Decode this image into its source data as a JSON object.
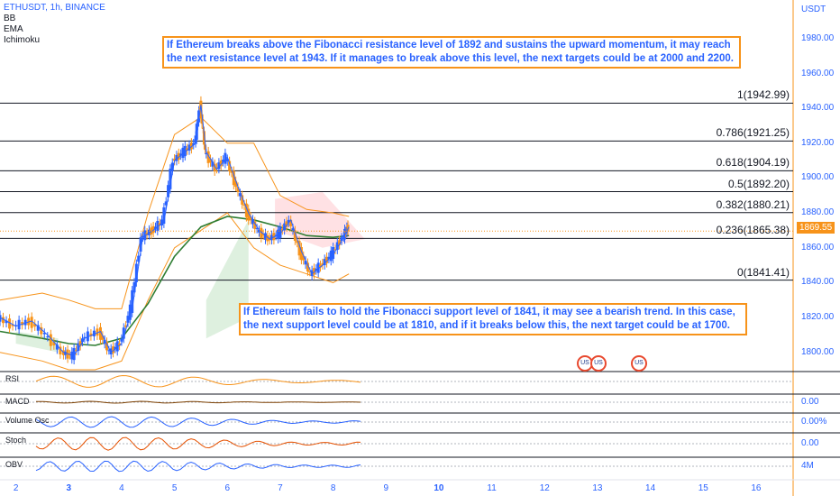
{
  "chart_data": {
    "type": "line",
    "symbol": "ETHUSDT, 1h, BINANCE",
    "indicators": [
      "BB",
      "EMA",
      "Ichimoku"
    ],
    "currency": "USDT",
    "y_ticks": [
      "1980.00",
      "1960.00",
      "1940.00",
      "1920.00",
      "1900.00",
      "1880.00",
      "1860.00",
      "1840.00",
      "1820.00",
      "1800.00"
    ],
    "ylim": [
      1790,
      1996
    ],
    "x_ticks": [
      {
        "x": 2,
        "label": "2",
        "bold": false
      },
      {
        "x": 3,
        "label": "3",
        "bold": true
      },
      {
        "x": 4,
        "label": "4",
        "bold": false
      },
      {
        "x": 5,
        "label": "5",
        "bold": false
      },
      {
        "x": 6,
        "label": "6",
        "bold": false
      },
      {
        "x": 7,
        "label": "7",
        "bold": false
      },
      {
        "x": 8,
        "label": "8",
        "bold": false
      },
      {
        "x": 9,
        "label": "9",
        "bold": false
      },
      {
        "x": 10,
        "label": "10",
        "bold": true
      },
      {
        "x": 11,
        "label": "11",
        "bold": false
      },
      {
        "x": 12,
        "label": "12",
        "bold": false
      },
      {
        "x": 13,
        "label": "13",
        "bold": false
      },
      {
        "x": 14,
        "label": "14",
        "bold": false
      },
      {
        "x": 15,
        "label": "15",
        "bold": false
      },
      {
        "x": 16,
        "label": "16",
        "bold": false
      }
    ],
    "xlim": [
      1.7,
      16.7
    ],
    "fib_levels": [
      {
        "label": "1(1942.99)",
        "value": 1942.99
      },
      {
        "label": "0.786(1921.25)",
        "value": 1921.25
      },
      {
        "label": "0.618(1904.19)",
        "value": 1904.19
      },
      {
        "label": "0.5(1892.20)",
        "value": 1892.2
      },
      {
        "label": "0.382(1880.21)",
        "value": 1880.21
      },
      {
        "label": "0.236(1865.38)",
        "value": 1865.38
      },
      {
        "label": "0(1841.41)",
        "value": 1841.41
      }
    ],
    "last_price": "1869.55",
    "price_series": {
      "x": [
        1.7,
        2.0,
        2.3,
        2.6,
        2.9,
        3.1,
        3.3,
        3.6,
        3.8,
        4.0,
        4.2,
        4.4,
        4.6,
        4.8,
        5.0,
        5.2,
        5.4,
        5.5,
        5.6,
        5.8,
        6.0,
        6.2,
        6.4,
        6.6,
        6.8,
        7.0,
        7.2,
        7.4,
        7.6,
        7.8,
        8.0,
        8.2,
        8.3
      ],
      "values": [
        1820,
        1815,
        1818,
        1810,
        1800,
        1798,
        1808,
        1812,
        1800,
        1805,
        1825,
        1866,
        1870,
        1875,
        1910,
        1915,
        1920,
        1942,
        1915,
        1905,
        1912,
        1895,
        1880,
        1870,
        1865,
        1868,
        1876,
        1858,
        1845,
        1850,
        1856,
        1866,
        1872
      ]
    },
    "ema_series": {
      "x": [
        1.7,
        2.5,
        3.0,
        3.5,
        4.0,
        4.5,
        5.0,
        5.5,
        6.0,
        6.5,
        7.0,
        7.5,
        8.0,
        8.3
      ],
      "values": [
        1812,
        1808,
        1805,
        1804,
        1808,
        1828,
        1855,
        1872,
        1878,
        1876,
        1872,
        1867,
        1866,
        1867
      ]
    },
    "bb_upper": {
      "x": [
        1.7,
        2.5,
        3.0,
        3.5,
        4.0,
        4.5,
        5.0,
        5.5,
        6.0,
        6.5,
        7.0,
        7.5,
        8.0,
        8.3
      ],
      "values": [
        1830,
        1834,
        1830,
        1825,
        1825,
        1880,
        1925,
        1935,
        1920,
        1920,
        1890,
        1882,
        1880,
        1878
      ]
    },
    "bb_lower": {
      "x": [
        1.7,
        2.5,
        3.0,
        3.5,
        4.0,
        4.5,
        5.0,
        5.5,
        6.0,
        6.5,
        7.0,
        7.5,
        8.0,
        8.3
      ],
      "values": [
        1800,
        1795,
        1790,
        1790,
        1795,
        1830,
        1860,
        1870,
        1880,
        1860,
        1850,
        1845,
        1840,
        1845
      ]
    },
    "annotations": {
      "top": "If Ethereum breaks above the Fibonacci resistance level of 1892 and sustains the upward momentum, it may reach the next resistance level at 1943. If it manages to break above this level, the next targets could be at 2000 and 2200.",
      "bottom": "If Ethereum fails to hold the Fibonacci support level of 1841, it may see a bearish trend. In this case, the next support level could be at 1810, and if it breaks below this, the next target could be at 1700."
    },
    "sub_panels": [
      {
        "name": "RSI",
        "value": ""
      },
      {
        "name": "MACD",
        "value": "0.00"
      },
      {
        "name": "Volume Osc",
        "value": "0.00%"
      },
      {
        "name": "Stoch",
        "value": "0.00"
      },
      {
        "name": "OBV",
        "value": "4M"
      }
    ]
  },
  "colors": {
    "axis_text": "#2962ff",
    "accent": "#f7931a",
    "bb": "#f7931a",
    "ema": "#2962ff",
    "baseline": "#2e7d32",
    "annotation_border": "#f7931a",
    "annotation_text": "#2962ff"
  }
}
